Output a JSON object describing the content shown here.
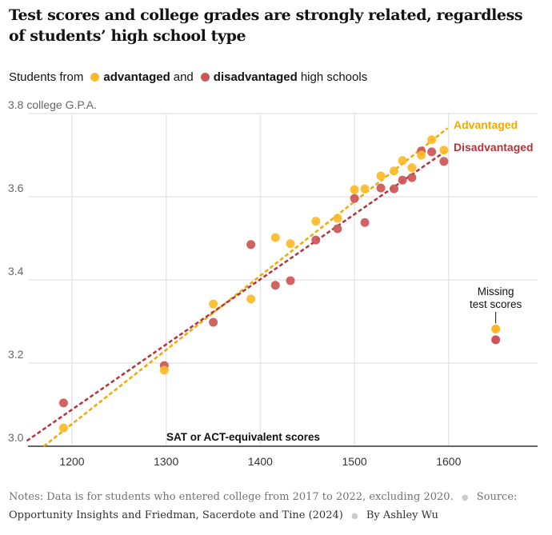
{
  "header": {
    "title": "Test scores and college grades are strongly related, regardless of students’ high school type",
    "legend_prefix": "Students from",
    "legend_adv": "advantaged",
    "legend_and": "and",
    "legend_dis": "disadvantaged",
    "legend_suffix": "high schools"
  },
  "colors": {
    "advantaged": "#FDB827",
    "advantaged_line": "#F5A800",
    "advantaged_label": "#F5A800",
    "disadvantaged": "#CC5656",
    "disadvantaged_line": "#B5333A",
    "disadvantaged_label": "#B5333A"
  },
  "chart_data": {
    "type": "scatter",
    "title": "Test scores and college grades are strongly related, regardless of students’ high school type",
    "xlabel": "SAT or ACT-equivalent scores",
    "ylabel": "college G.P.A.",
    "xlim": [
      1150,
      1700
    ],
    "ylim": [
      3.0,
      3.8
    ],
    "x_ticks": [
      1200,
      1300,
      1400,
      1500,
      1600
    ],
    "x_tick_labels": [
      "1200",
      "1300",
      "1400",
      "1500",
      "1600"
    ],
    "y_ticks": [
      3.0,
      3.2,
      3.4,
      3.6,
      3.8
    ],
    "y_tick_labels": [
      "3.0",
      "3.2",
      "3.4",
      "3.6",
      "3.8 college G.P.A."
    ],
    "grid": true,
    "legend_placement": "top",
    "series": [
      {
        "name": "Advantaged",
        "x": [
          1191,
          1298,
          1350,
          1390,
          1416,
          1432,
          1459,
          1482,
          1500,
          1511,
          1528,
          1542,
          1551,
          1561,
          1571,
          1582,
          1595
        ],
        "y": [
          3.044,
          3.183,
          3.342,
          3.354,
          3.502,
          3.487,
          3.541,
          3.548,
          3.617,
          3.619,
          3.65,
          3.662,
          3.687,
          3.67,
          3.7,
          3.737,
          3.712
        ],
        "missing_test_scores_gpa": 3.282,
        "trendline": {
          "x": [
            1170,
            1599
          ],
          "y": [
            3.0,
            3.765
          ]
        }
      },
      {
        "name": "Disadvantaged",
        "x": [
          1191,
          1298,
          1350,
          1390,
          1416,
          1432,
          1459,
          1482,
          1500,
          1511,
          1528,
          1542,
          1551,
          1561,
          1571,
          1582,
          1595
        ],
        "y": [
          3.104,
          3.194,
          3.298,
          3.485,
          3.387,
          3.398,
          3.496,
          3.523,
          3.596,
          3.538,
          3.621,
          3.619,
          3.64,
          3.646,
          3.71,
          3.708,
          3.685
        ],
        "missing_test_scores_gpa": 3.256,
        "trendline": {
          "x": [
            1152,
            1599
          ],
          "y": [
            3.013,
            3.713
          ]
        }
      }
    ],
    "missing_x_position": 1650,
    "annotations": {
      "advantaged_label": "Advantaged",
      "disadvantaged_label": "Disadvantaged",
      "missing_line1": "Missing",
      "missing_line2": "test scores"
    }
  },
  "footer": {
    "notes": "Notes: Data is for students who entered college from 2017 to 2022, excluding 2020.",
    "source_label": "Source:",
    "source": "Opportunity Insights and Friedman, Sacerdote and Tine (2024)",
    "byline": "By Ashley Wu",
    "separator": "●"
  }
}
